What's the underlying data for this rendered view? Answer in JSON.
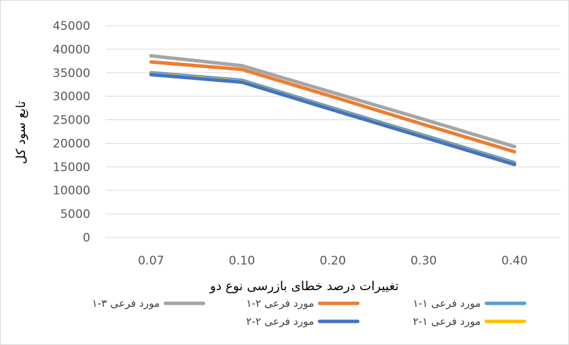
{
  "chart_data": {
    "type": "line",
    "categories": [
      "0.07",
      "0.10",
      "0.20",
      "0.30",
      "0.40"
    ],
    "xlabel": "تغییرات درصد خطای بازرسی نوع دو",
    "ylabel": "تابع سود کل",
    "ylim": [
      0,
      45000
    ],
    "yticks": [
      "0",
      "5000",
      "10000",
      "15000",
      "20000",
      "25000",
      "30000",
      "35000",
      "40000",
      "45000"
    ],
    "grid": true,
    "legend_placement": "bottom",
    "series": [
      {
        "name": "مورد فرعی ۱-۱",
        "color": "#5b9bd5",
        "values": [
          35000,
          33400,
          27500,
          21700,
          15900
        ]
      },
      {
        "name": "مورد فرعی ۲-۱",
        "color": "#ed7d31",
        "values": [
          37300,
          35700,
          29900,
          24000,
          18200
        ]
      },
      {
        "name": "مورد فرعی ۳-۱",
        "color": "#a5a5a5",
        "values": [
          38600,
          36500,
          30800,
          25100,
          19300
        ]
      },
      {
        "name": "مورد فرعی ۱-۲",
        "color": "#ffc000",
        "values": [
          34700,
          33100,
          27200,
          21400,
          15600
        ]
      },
      {
        "name": "مورد فرعی ۲-۲",
        "color": "#4472c4",
        "values": [
          34600,
          33000,
          27100,
          21300,
          15500
        ]
      }
    ]
  }
}
